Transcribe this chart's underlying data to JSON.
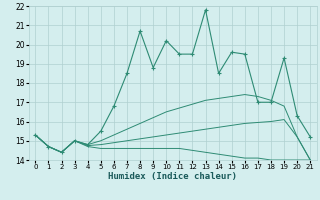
{
  "xlabel": "Humidex (Indice chaleur)",
  "x": [
    0,
    1,
    2,
    3,
    4,
    5,
    6,
    7,
    8,
    9,
    10,
    11,
    12,
    13,
    14,
    15,
    16,
    17,
    18,
    19,
    20,
    21
  ],
  "line1": [
    15.3,
    14.7,
    14.4,
    15.0,
    14.7,
    14.6,
    14.6,
    14.6,
    14.6,
    14.6,
    14.6,
    14.6,
    14.5,
    14.4,
    14.3,
    14.2,
    14.1,
    14.1,
    14.0,
    14.0,
    14.0,
    14.0
  ],
  "line2": [
    15.3,
    14.7,
    14.4,
    15.0,
    14.75,
    14.8,
    14.9,
    15.0,
    15.1,
    15.2,
    15.3,
    15.4,
    15.5,
    15.6,
    15.7,
    15.8,
    15.9,
    15.95,
    16.0,
    16.1,
    15.2,
    14.0
  ],
  "line3": [
    15.3,
    14.7,
    14.4,
    15.0,
    14.8,
    15.0,
    15.3,
    15.6,
    15.9,
    16.2,
    16.5,
    16.7,
    16.9,
    17.1,
    17.2,
    17.3,
    17.4,
    17.3,
    17.1,
    16.8,
    15.2,
    14.0
  ],
  "main_line": [
    15.3,
    14.7,
    14.4,
    15.0,
    14.8,
    15.5,
    16.8,
    18.5,
    20.7,
    18.8,
    20.2,
    19.5,
    19.5,
    21.8,
    18.5,
    19.6,
    19.5,
    17.0,
    17.0,
    19.3,
    16.3,
    15.2
  ],
  "color": "#2e8b74",
  "bg_color": "#d4eeee",
  "grid_color": "#b0d0d0",
  "ylim": [
    14,
    22
  ],
  "yticks": [
    14,
    15,
    16,
    17,
    18,
    19,
    20,
    21,
    22
  ],
  "xlim": [
    -0.5,
    21.5
  ]
}
